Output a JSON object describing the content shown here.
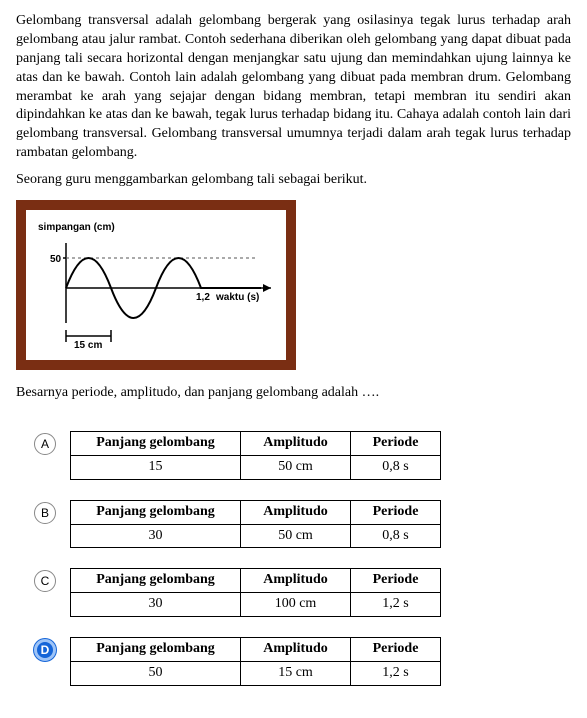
{
  "paragraph": "Gelombang transversal adalah gelombang bergerak yang osilasinya tegak lurus terhadap arah gelombang atau jalur rambat. Contoh sederhana diberikan oleh gelombang yang dapat dibuat pada panjang tali secara horizontal dengan menjangkar satu ujung dan memindahkan ujung lainnya ke atas dan ke bawah. Contoh lain adalah gelombang yang dibuat pada membran drum. Gelombang merambat ke arah yang sejajar dengan bidang membran, tetapi membran itu sendiri akan dipindahkan ke atas dan ke bawah, tegak lurus terhadap bidang itu. Cahaya adalah contoh lain dari gelombang transversal. Gelombang transversal umumnya terjadi dalam arah tegak lurus terhadap rambatan gelombang.",
  "intro": "Seorang guru menggambarkan gelombang tali sebagai berikut.",
  "diagram": {
    "frame_color": "#7a2e13",
    "y_axis_label": "simpangan (cm)",
    "y_tick_label": "50",
    "x_axis_label": "waktu (s)",
    "x_tick_label": "1,2",
    "marker_label": "15 cm",
    "wave_color": "#000000",
    "dashed_color": "#555555"
  },
  "question": "Besarnya periode, amplitudo, dan panjang gelombang adalah ….",
  "headers": {
    "col1": "Panjang gelombang",
    "col2": "Amplitudo",
    "col3": "Periode"
  },
  "options": [
    {
      "letter": "A",
      "selected": false,
      "col1": "15",
      "col2": "50 cm",
      "col3": "0,8 s"
    },
    {
      "letter": "B",
      "selected": false,
      "col1": "30",
      "col2": "50 cm",
      "col3": "0,8 s"
    },
    {
      "letter": "C",
      "selected": false,
      "col1": "30",
      "col2": "100 cm",
      "col3": "1,2 s"
    },
    {
      "letter": "D",
      "selected": true,
      "col1": "50",
      "col2": "15 cm",
      "col3": "1,2 s"
    }
  ]
}
